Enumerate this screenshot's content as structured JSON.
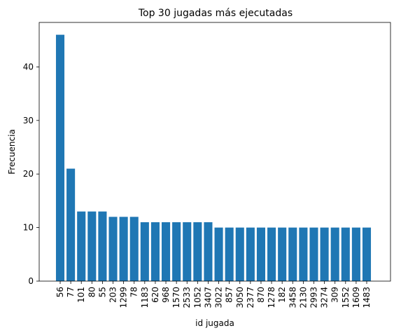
{
  "chart_data": {
    "type": "bar",
    "title": "Top 30 jugadas más ejecutadas",
    "xlabel": "id jugada",
    "ylabel": "Frecuencia",
    "categories": [
      "56",
      "77",
      "101",
      "80",
      "55",
      "203",
      "1299",
      "78",
      "1183",
      "620",
      "968",
      "1570",
      "2533",
      "1052",
      "3407",
      "3022",
      "857",
      "3050",
      "2377",
      "870",
      "1278",
      "182",
      "3458",
      "2130",
      "2993",
      "3274",
      "309",
      "1552",
      "1609",
      "1483"
    ],
    "values": [
      46,
      21,
      13,
      13,
      13,
      12,
      12,
      12,
      11,
      11,
      11,
      11,
      11,
      11,
      11,
      10,
      10,
      10,
      10,
      10,
      10,
      10,
      10,
      10,
      10,
      10,
      10,
      10,
      10,
      10
    ],
    "yticks": [
      0,
      10,
      20,
      30,
      40
    ],
    "ylim": [
      0,
      48.3
    ],
    "bar_color": "#1f77b4",
    "grid": false,
    "legend": "none"
  }
}
